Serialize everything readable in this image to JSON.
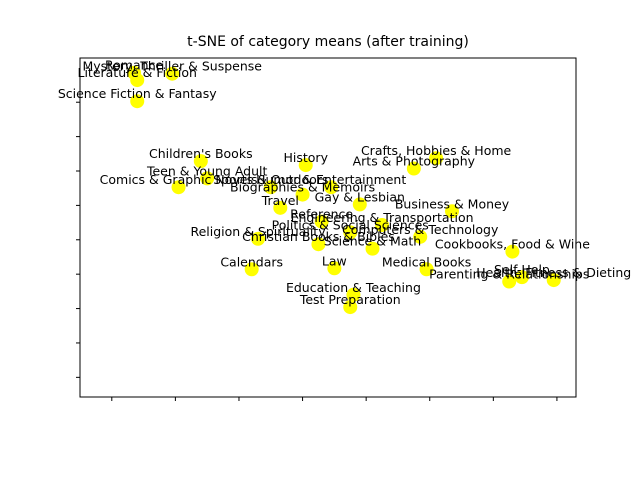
{
  "chart_data": {
    "type": "scatter",
    "title": "t-SNE of category means (after training)",
    "xlabel": "",
    "ylabel": "",
    "xlim": [
      -11,
      67
    ],
    "ylim": [
      -11,
      58
    ],
    "grid": false,
    "x_ticks": [
      -6,
      4,
      14,
      24,
      34,
      44,
      54,
      64
    ],
    "y_ticks": [
      -7,
      0,
      7,
      14,
      21,
      28,
      35,
      42,
      49
    ],
    "marker_color": "#ffff00",
    "points": [
      {
        "label": "Romance",
        "x": -2.5,
        "y": 55
      },
      {
        "label": "Mystery, Thriller & Suspense",
        "x": 3.5,
        "y": 54.8
      },
      {
        "label": "Literature & Fiction",
        "x": -2,
        "y": 53.5
      },
      {
        "label": "Science Fiction & Fantasy",
        "x": -2,
        "y": 49.2
      },
      {
        "label": "Children's Books",
        "x": 8,
        "y": 37
      },
      {
        "label": "Teen & Young Adult",
        "x": 9,
        "y": 33.5
      },
      {
        "label": "Comics & Graphic Novels",
        "x": 4.5,
        "y": 31.7
      },
      {
        "label": "Sports & Outdoors",
        "x": 19,
        "y": 31.7
      },
      {
        "label": "Humor & Entertainment",
        "x": 28.5,
        "y": 31.7
      },
      {
        "label": "Biographies & Memoirs",
        "x": 24,
        "y": 30.2
      },
      {
        "label": "History",
        "x": 24.5,
        "y": 36.2
      },
      {
        "label": "Crafts, Hobbies & Home",
        "x": 45,
        "y": 37.6
      },
      {
        "label": "Arts & Photography",
        "x": 41.5,
        "y": 35.5
      },
      {
        "label": "Gay & Lesbian",
        "x": 33,
        "y": 28.2
      },
      {
        "label": "Travel",
        "x": 20.5,
        "y": 27.5
      },
      {
        "label": "Business & Money",
        "x": 47.5,
        "y": 26.8
      },
      {
        "label": "Reference",
        "x": 27,
        "y": 24.7
      },
      {
        "label": "Engineering & Transportation",
        "x": 36.5,
        "y": 24
      },
      {
        "label": "Politics & Social Sciences",
        "x": 31.5,
        "y": 22.5
      },
      {
        "label": "Computers & Technology",
        "x": 42.5,
        "y": 21.6
      },
      {
        "label": "Religion & Spirituality",
        "x": 17,
        "y": 21.2
      },
      {
        "label": "Christian Books & Bibles",
        "x": 26.5,
        "y": 20.1
      },
      {
        "label": "Science & Math",
        "x": 35,
        "y": 19.2
      },
      {
        "label": "Cookbooks, Food & Wine",
        "x": 57,
        "y": 18.6
      },
      {
        "label": "Law",
        "x": 29,
        "y": 15.2
      },
      {
        "label": "Calendars",
        "x": 16,
        "y": 15
      },
      {
        "label": "Medical Books",
        "x": 43.5,
        "y": 15
      },
      {
        "label": "Self-Help",
        "x": 58.5,
        "y": 13.4
      },
      {
        "label": "Health, Fitness & Dieting",
        "x": 63.5,
        "y": 12.8
      },
      {
        "label": "Parenting & Relationships",
        "x": 56.5,
        "y": 12.5
      },
      {
        "label": "Education & Teaching",
        "x": 32,
        "y": 9.8
      },
      {
        "label": "Test Preparation",
        "x": 31.5,
        "y": 7.3
      }
    ]
  }
}
